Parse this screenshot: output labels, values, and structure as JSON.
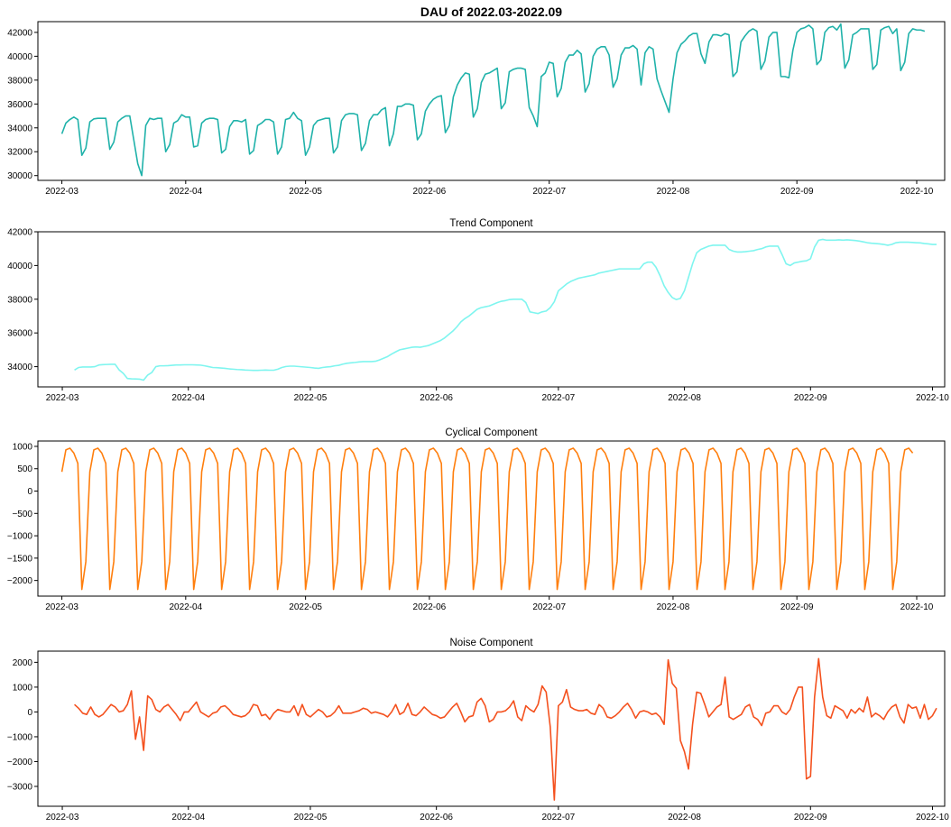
{
  "chart_data": [
    {
      "type": "line",
      "title": "DAU of 2022.03-2022.09",
      "title_bold": true,
      "color": "#20b2aa",
      "x_start": "2022-03-01",
      "xlim": [
        "2022-02-23",
        "2022-10-08"
      ],
      "ylim": [
        29600,
        42900
      ],
      "xticks": [
        "2022-03",
        "2022-04",
        "2022-05",
        "2022-06",
        "2022-07",
        "2022-08",
        "2022-09",
        "2022-10"
      ],
      "yticks": [
        30000,
        32000,
        34000,
        36000,
        38000,
        40000,
        42000
      ],
      "grid": false,
      "values": [
        33500,
        34400,
        34700,
        34900,
        34700,
        31700,
        32300,
        34500,
        34750,
        34800,
        34800,
        34800,
        32200,
        32800,
        34500,
        34800,
        35000,
        35000,
        33000,
        31000,
        30000,
        34200,
        34800,
        34700,
        34800,
        34800,
        32000,
        32600,
        34400,
        34600,
        35100,
        34900,
        34900,
        32400,
        32500,
        34400,
        34700,
        34800,
        34800,
        34700,
        31900,
        32200,
        34100,
        34600,
        34600,
        34500,
        34700,
        31800,
        32100,
        34200,
        34400,
        34700,
        34700,
        34500,
        31800,
        32400,
        34700,
        34800,
        35300,
        34800,
        34600,
        31700,
        32400,
        34200,
        34600,
        34700,
        34800,
        34800,
        31900,
        32400,
        34600,
        35100,
        35200,
        35200,
        35100,
        32100,
        32700,
        34600,
        35100,
        35100,
        35500,
        35700,
        32500,
        33500,
        35800,
        35800,
        36000,
        36000,
        35900,
        33000,
        33500,
        35400,
        36000,
        36400,
        36600,
        36700,
        33600,
        34200,
        36600,
        37600,
        38200,
        38600,
        38500,
        34900,
        35600,
        37800,
        38500,
        38600,
        38800,
        39000,
        35600,
        36100,
        38700,
        38900,
        39000,
        39000,
        38900,
        35700,
        35000,
        34100,
        38300,
        38600,
        39500,
        39400,
        36600,
        37300,
        39500,
        40100,
        40100,
        40500,
        40200,
        37000,
        37700,
        40000,
        40600,
        40800,
        40800,
        40100,
        37400,
        38100,
        40100,
        40700,
        40700,
        40900,
        40600,
        37600,
        40300,
        40800,
        40600,
        38100,
        37100,
        36200,
        35300,
        38100,
        40300,
        41000,
        41300,
        41700,
        41900,
        41900,
        40200,
        39400,
        41200,
        41800,
        41800,
        41700,
        41900,
        41800,
        38300,
        38700,
        41200,
        41700,
        42100,
        42300,
        42100,
        38900,
        39600,
        41600,
        42000,
        42000,
        38300,
        38300,
        38200,
        40500,
        42000,
        42300,
        42400,
        42600,
        42300,
        39300,
        39700,
        42000,
        42400,
        42500,
        42200,
        42700,
        39000,
        39700,
        41800,
        42000,
        42300,
        42300,
        42300,
        38900,
        39300,
        42200,
        42400,
        42500,
        41900,
        42300,
        38800,
        39500,
        41900,
        42300,
        42200,
        42200,
        42100
      ]
    },
    {
      "type": "line",
      "title": "Trend Component",
      "title_bold": false,
      "color": "#7ff5ef",
      "x_start": "2022-03-04",
      "xlim": [
        "2022-02-23",
        "2022-10-04"
      ],
      "ylim": [
        32800,
        42000
      ],
      "xticks": [
        "2022-03",
        "2022-04",
        "2022-05",
        "2022-06",
        "2022-07",
        "2022-08",
        "2022-09",
        "2022-10"
      ],
      "yticks": [
        34000,
        36000,
        38000,
        40000,
        42000
      ],
      "grid": false,
      "values": [
        33800,
        33950,
        33980,
        33980,
        33980,
        34000,
        34100,
        34120,
        34130,
        34140,
        34140,
        33800,
        33600,
        33300,
        33280,
        33270,
        33260,
        33200,
        33500,
        33650,
        34000,
        34050,
        34050,
        34060,
        34080,
        34100,
        34100,
        34110,
        34110,
        34110,
        34100,
        34090,
        34050,
        34000,
        33950,
        33940,
        33920,
        33900,
        33870,
        33850,
        33830,
        33820,
        33800,
        33790,
        33780,
        33780,
        33790,
        33800,
        33790,
        33790,
        33850,
        33950,
        34010,
        34030,
        34030,
        34010,
        33990,
        33970,
        33950,
        33920,
        33900,
        33950,
        33980,
        34000,
        34050,
        34080,
        34150,
        34200,
        34230,
        34250,
        34280,
        34300,
        34300,
        34300,
        34320,
        34400,
        34500,
        34600,
        34750,
        34880,
        35000,
        35050,
        35100,
        35150,
        35170,
        35150,
        35200,
        35250,
        35350,
        35450,
        35550,
        35700,
        35900,
        36100,
        36350,
        36650,
        36850,
        37000,
        37200,
        37400,
        37500,
        37550,
        37600,
        37700,
        37800,
        37880,
        37920,
        37980,
        38000,
        38000,
        38000,
        37800,
        37250,
        37200,
        37150,
        37250,
        37300,
        37500,
        37850,
        38500,
        38700,
        38900,
        39050,
        39150,
        39250,
        39300,
        39350,
        39400,
        39450,
        39550,
        39600,
        39650,
        39700,
        39750,
        39800,
        39800,
        39800,
        39800,
        39800,
        39800,
        40100,
        40200,
        40200,
        39900,
        39400,
        38800,
        38400,
        38100,
        37980,
        38050,
        38500,
        39300,
        40100,
        40750,
        40950,
        41050,
        41150,
        41200,
        41200,
        41200,
        41200,
        40950,
        40850,
        40800,
        40800,
        40820,
        40850,
        40880,
        40950,
        41000,
        41100,
        41150,
        41150,
        41150,
        40650,
        40100,
        40000,
        40150,
        40200,
        40250,
        40280,
        40400,
        41100,
        41500,
        41550,
        41500,
        41500,
        41500,
        41520,
        41500,
        41520,
        41500,
        41480,
        41450,
        41400,
        41350,
        41320,
        41300,
        41280,
        41250,
        41200,
        41250,
        41350,
        41380,
        41380,
        41380,
        41370,
        41350,
        41340,
        41300,
        41280,
        41250,
        41250
      ]
    },
    {
      "type": "line",
      "title": "Cyclical Component",
      "title_bold": false,
      "color": "#ff7f0e",
      "x_start": "2022-03-01",
      "xlim": [
        "2022-02-23",
        "2022-10-08"
      ],
      "ylim": [
        -2350,
        1120
      ],
      "xticks": [
        "2022-03",
        "2022-04",
        "2022-05",
        "2022-06",
        "2022-07",
        "2022-08",
        "2022-09",
        "2022-10"
      ],
      "yticks": [
        1000,
        500,
        0,
        -500,
        -1000,
        -1500,
        -2000
      ],
      "grid": false,
      "weekly_pattern": [
        430,
        920,
        960,
        850,
        620,
        -2200,
        -1580
      ],
      "num_days": 214
    },
    {
      "type": "line",
      "title": "Noise Component",
      "title_bold": false,
      "color": "#f4511e",
      "x_start": "2022-03-04",
      "xlim": [
        "2022-02-23",
        "2022-10-04"
      ],
      "ylim": [
        -3800,
        2450
      ],
      "xticks": [
        "2022-03",
        "2022-04",
        "2022-05",
        "2022-06",
        "2022-07",
        "2022-08",
        "2022-09",
        "2022-10"
      ],
      "yticks": [
        2000,
        1000,
        0,
        -1000,
        -2000,
        -3000
      ],
      "grid": false,
      "values": [
        300,
        150,
        -50,
        -100,
        200,
        -100,
        -200,
        -100,
        100,
        300,
        200,
        0,
        50,
        300,
        850,
        -1100,
        -200,
        -1550,
        650,
        500,
        100,
        0,
        200,
        300,
        100,
        -100,
        -350,
        0,
        0,
        200,
        400,
        0,
        -100,
        -200,
        -50,
        0,
        200,
        250,
        100,
        -100,
        -150,
        -200,
        -150,
        0,
        300,
        250,
        -150,
        -100,
        -300,
        -50,
        100,
        50,
        0,
        0,
        250,
        -150,
        300,
        -100,
        -200,
        -50,
        100,
        0,
        -200,
        -150,
        0,
        250,
        -50,
        -50,
        -50,
        0,
        50,
        150,
        100,
        -50,
        0,
        -50,
        -100,
        -200,
        0,
        300,
        -100,
        0,
        350,
        -100,
        -150,
        0,
        200,
        50,
        -100,
        -150,
        -250,
        -200,
        0,
        200,
        350,
        0,
        -400,
        -200,
        -150,
        400,
        550,
        250,
        -400,
        -300,
        0,
        0,
        50,
        200,
        450,
        -200,
        -350,
        250,
        100,
        0,
        300,
        1050,
        800,
        -600,
        -3550,
        250,
        400,
        900,
        200,
        100,
        50,
        50,
        100,
        -50,
        -100,
        300,
        150,
        -200,
        -250,
        -150,
        0,
        200,
        350,
        100,
        -250,
        0,
        50,
        0,
        -100,
        -50,
        -200,
        -500,
        2100,
        1150,
        950,
        -1150,
        -1600,
        -2300,
        -500,
        800,
        750,
        300,
        -200,
        0,
        200,
        300,
        1400,
        -200,
        -300,
        -200,
        -100,
        200,
        300,
        -200,
        -300,
        -550,
        -50,
        0,
        250,
        250,
        0,
        -100,
        100,
        600,
        1000,
        1000,
        -2700,
        -2600,
        600,
        2150,
        600,
        -150,
        -250,
        250,
        150,
        50,
        -250,
        100,
        -50,
        150,
        0,
        600,
        -200,
        -50,
        -150,
        -300,
        0,
        200,
        300,
        -200,
        -450,
        300,
        150,
        200,
        -250,
        300,
        -300,
        -150,
        150
      ]
    }
  ]
}
